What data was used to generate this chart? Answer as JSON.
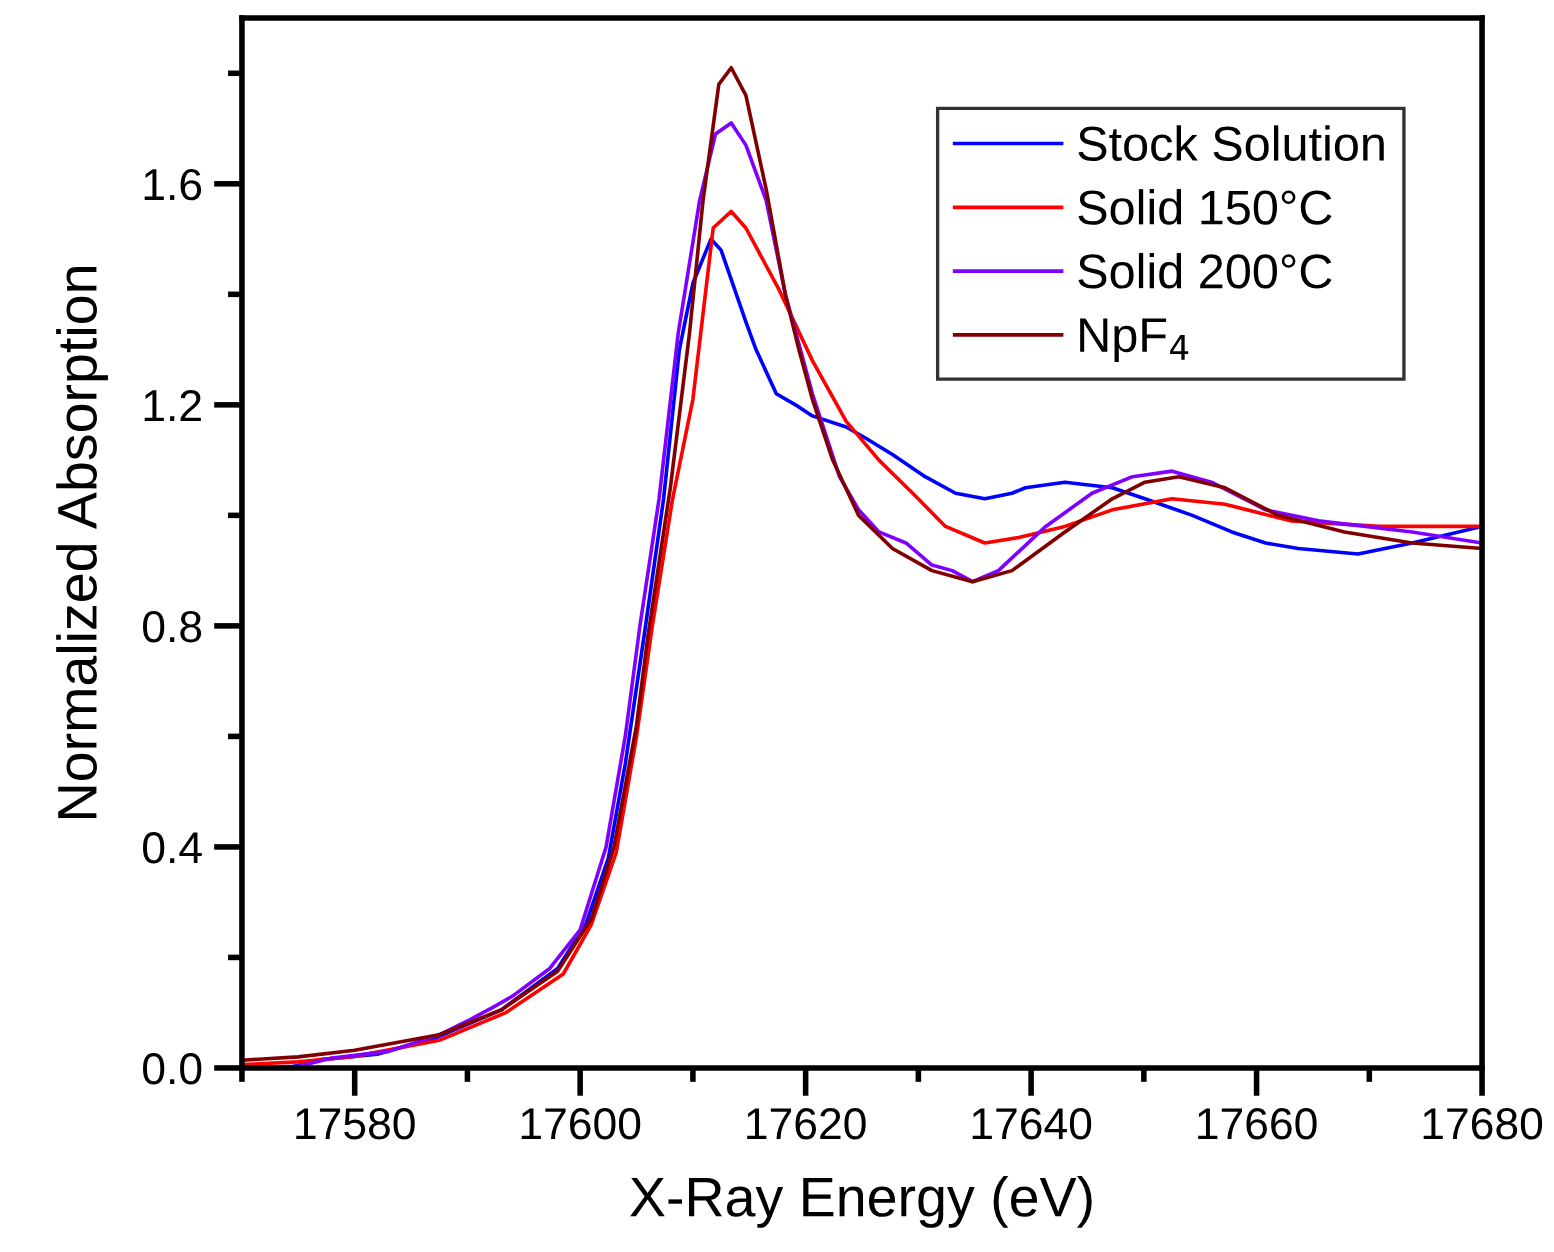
{
  "chart_data": {
    "type": "line",
    "xlabel": "X-Ray Energy (eV)",
    "ylabel": "Normalized Absorption",
    "xlim": [
      17570,
      17680
    ],
    "ylim": [
      0,
      1.9
    ],
    "xticks": [
      {
        "value": 17570,
        "label": null
      },
      17580,
      {
        "value": 17590,
        "label": null
      },
      17600,
      {
        "value": 17610,
        "label": null
      },
      17620,
      {
        "value": 17630,
        "label": null
      },
      17640,
      {
        "value": 17650,
        "label": null
      },
      17660,
      {
        "value": 17670,
        "label": null
      },
      17680
    ],
    "yticks": [
      {
        "value": 0,
        "label": "0.0"
      },
      {
        "value": 0.2,
        "label": null
      },
      0.4,
      {
        "value": 0.6,
        "label": null
      },
      0.8,
      {
        "value": 1.0,
        "label": null
      },
      1.2,
      {
        "value": 1.4,
        "label": null
      },
      1.6,
      {
        "value": 1.8,
        "label": null
      }
    ],
    "legend": "top right",
    "series": [
      {
        "name": "Stock Solution",
        "color": "#0000ff",
        "x": [
          17570,
          17574,
          17577,
          17582,
          17587.5,
          17593,
          17598,
          17600.5,
          17602.5,
          17604,
          17605.8,
          17607.4,
          17608.8,
          17610.0,
          17611.6,
          17612.5,
          17614.7,
          17615.6,
          17617.4,
          17619.1,
          17620.6,
          17623.6,
          17625.3,
          17627.7,
          17630.6,
          17633.3,
          17635.9,
          17638.3,
          17639.5,
          17643.0,
          17647.2,
          17650.1,
          17654.3,
          17657.8,
          17660.8,
          17663.7,
          17669.0,
          17673.8,
          17680
        ],
        "values": [
          0.0,
          0.0,
          0.015,
          0.025,
          0.057,
          0.105,
          0.18,
          0.26,
          0.38,
          0.55,
          0.8,
          1.03,
          1.3,
          1.42,
          1.5,
          1.48,
          1.35,
          1.3,
          1.22,
          1.2,
          1.18,
          1.16,
          1.14,
          1.11,
          1.07,
          1.04,
          1.03,
          1.04,
          1.05,
          1.06,
          1.05,
          1.03,
          1.0,
          0.97,
          0.95,
          0.94,
          0.93,
          0.95,
          0.98
        ]
      },
      {
        "name": "Solid 150°C",
        "color": "#ff0000",
        "x": [
          17570,
          17575,
          17580,
          17587.5,
          17593.4,
          17598.5,
          17601,
          17603.2,
          17605,
          17606.4,
          17608.2,
          17610,
          17611.8,
          17613.4,
          17614.7,
          17617.6,
          17620.6,
          17623.6,
          17626.5,
          17629.5,
          17632.4,
          17635.9,
          17638.9,
          17643.0,
          17647.2,
          17652.5,
          17657.2,
          17663.1,
          17670.8,
          17680
        ],
        "values": [
          0.006,
          0.011,
          0.021,
          0.05,
          0.1,
          0.17,
          0.26,
          0.39,
          0.6,
          0.8,
          1.03,
          1.21,
          1.52,
          1.55,
          1.52,
          1.41,
          1.28,
          1.17,
          1.1,
          1.04,
          0.98,
          0.95,
          0.96,
          0.98,
          1.01,
          1.03,
          1.02,
          0.99,
          0.98,
          0.98
        ]
      },
      {
        "name": "Solid 200°C",
        "color": "#8000ff",
        "x": [
          17570,
          17575,
          17578,
          17583,
          17587.5,
          17590,
          17592.3,
          17594,
          17597.3,
          17600,
          17602.3,
          17604,
          17605.3,
          17607.0,
          17608.7,
          17610.6,
          17612,
          17613.4,
          17614.7,
          17616.5,
          17618.2,
          17620.6,
          17623.0,
          17624.7,
          17626.5,
          17628.9,
          17631.2,
          17633.0,
          17634.8,
          17637.1,
          17641.3,
          17645.4,
          17649.0,
          17652.5,
          17656.0,
          17660.8,
          17665.5,
          17673.8,
          17680
        ],
        "values": [
          0.0,
          0.003,
          0.018,
          0.03,
          0.06,
          0.085,
          0.11,
          0.13,
          0.18,
          0.25,
          0.4,
          0.6,
          0.8,
          1.03,
          1.33,
          1.57,
          1.69,
          1.71,
          1.67,
          1.57,
          1.4,
          1.22,
          1.07,
          1.01,
          0.97,
          0.95,
          0.91,
          0.9,
          0.88,
          0.9,
          0.98,
          1.04,
          1.07,
          1.08,
          1.06,
          1.01,
          0.99,
          0.97,
          0.95
        ]
      },
      {
        "name": "NpF$_{4}$",
        "color": "#800000",
        "x": [
          17570,
          17575,
          17580,
          17587.5,
          17593,
          17598,
          17601,
          17603,
          17605,
          17606,
          17608,
          17609.7,
          17610.9,
          17612.3,
          17613.4,
          17614.7,
          17616.5,
          17618.2,
          17619.4,
          17620.6,
          17622.4,
          17624.7,
          17627.7,
          17631.2,
          17634.8,
          17638.3,
          17643.0,
          17647.2,
          17650.1,
          17653.1,
          17657.2,
          17661.9,
          17667.8,
          17673.8,
          17680
        ],
        "values": [
          0.014,
          0.02,
          0.032,
          0.06,
          0.105,
          0.175,
          0.27,
          0.4,
          0.62,
          0.78,
          1.05,
          1.33,
          1.57,
          1.78,
          1.81,
          1.76,
          1.59,
          1.4,
          1.3,
          1.21,
          1.1,
          1.0,
          0.94,
          0.9,
          0.88,
          0.9,
          0.97,
          1.03,
          1.06,
          1.07,
          1.05,
          1.0,
          0.97,
          0.95,
          0.94
        ]
      }
    ]
  }
}
